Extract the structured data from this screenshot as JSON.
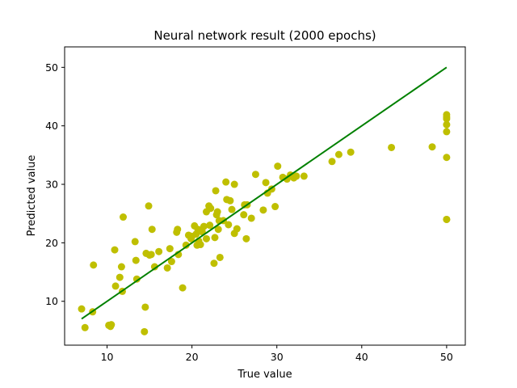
{
  "chart_data": {
    "type": "scatter",
    "title": "Neural network result (2000 epochs)",
    "xlabel": "True value",
    "ylabel": "Predicted value",
    "xlim": [
      5,
      52.2
    ],
    "ylim": [
      2.5,
      53.5
    ],
    "xticks": [
      10,
      20,
      30,
      40,
      50
    ],
    "yticks": [
      10,
      20,
      30,
      40,
      50
    ],
    "xtick_labels": [
      "10",
      "20",
      "30",
      "40",
      "50"
    ],
    "ytick_labels": [
      "10",
      "20",
      "30",
      "40",
      "50"
    ],
    "grid": false,
    "legend": "none",
    "colors": {
      "points": "#bfbf00",
      "fit_line": "#008000"
    },
    "fit_line": {
      "x": [
        7.0,
        50.0
      ],
      "y": [
        7.0,
        50.0
      ]
    },
    "points": {
      "x": [
        7.0,
        7.4,
        8.3,
        8.4,
        10.2,
        10.4,
        10.5,
        10.9,
        11.0,
        11.5,
        11.7,
        11.8,
        11.9,
        13.3,
        13.4,
        13.5,
        14.4,
        14.5,
        14.6,
        14.9,
        15.0,
        15.2,
        15.3,
        15.6,
        16.1,
        17.1,
        17.4,
        17.6,
        18.2,
        18.3,
        18.4,
        18.9,
        19.3,
        19.6,
        19.9,
        20.0,
        20.3,
        20.5,
        20.6,
        20.7,
        20.8,
        21.0,
        21.2,
        21.4,
        21.7,
        21.7,
        22.0,
        22.1,
        22.2,
        22.6,
        22.7,
        22.8,
        22.9,
        23.0,
        23.1,
        23.2,
        23.3,
        23.7,
        24.0,
        24.1,
        24.3,
        24.5,
        24.7,
        25.0,
        25.0,
        25.3,
        26.1,
        26.2,
        26.4,
        26.5,
        27.0,
        27.5,
        28.4,
        28.7,
        28.9,
        29.4,
        29.8,
        30.1,
        30.7,
        31.2,
        31.6,
        32.0,
        32.3,
        33.2,
        36.5,
        37.3,
        38.7,
        43.5,
        48.3,
        50.0,
        50.0,
        50.0,
        50.0,
        50.0,
        50.0,
        50.0,
        50.0
      ],
      "y": [
        8.7,
        5.5,
        8.2,
        16.2,
        5.9,
        5.7,
        6.0,
        18.8,
        12.6,
        14.1,
        15.9,
        11.7,
        24.4,
        20.2,
        17.0,
        13.8,
        4.8,
        9.0,
        18.2,
        26.3,
        17.9,
        18.0,
        22.3,
        15.9,
        18.5,
        15.7,
        19.0,
        16.8,
        21.8,
        22.3,
        18.0,
        12.3,
        19.6,
        21.3,
        20.7,
        21.1,
        22.9,
        21.5,
        19.6,
        22.3,
        20.3,
        19.7,
        21.9,
        22.8,
        25.3,
        20.7,
        26.3,
        23.0,
        25.9,
        16.5,
        20.9,
        28.9,
        24.8,
        25.3,
        22.3,
        23.8,
        17.5,
        23.8,
        30.4,
        27.4,
        23.1,
        27.2,
        25.7,
        30.0,
        21.6,
        22.4,
        24.8,
        26.5,
        20.7,
        26.5,
        24.2,
        31.7,
        25.6,
        30.3,
        28.5,
        29.2,
        26.2,
        33.1,
        31.2,
        30.9,
        31.6,
        31.1,
        31.4,
        31.4,
        33.9,
        35.1,
        35.5,
        36.3,
        36.4,
        24.0,
        34.6,
        39.0,
        40.2,
        41.5,
        41.9,
        41.2,
        24.0
      ]
    }
  }
}
